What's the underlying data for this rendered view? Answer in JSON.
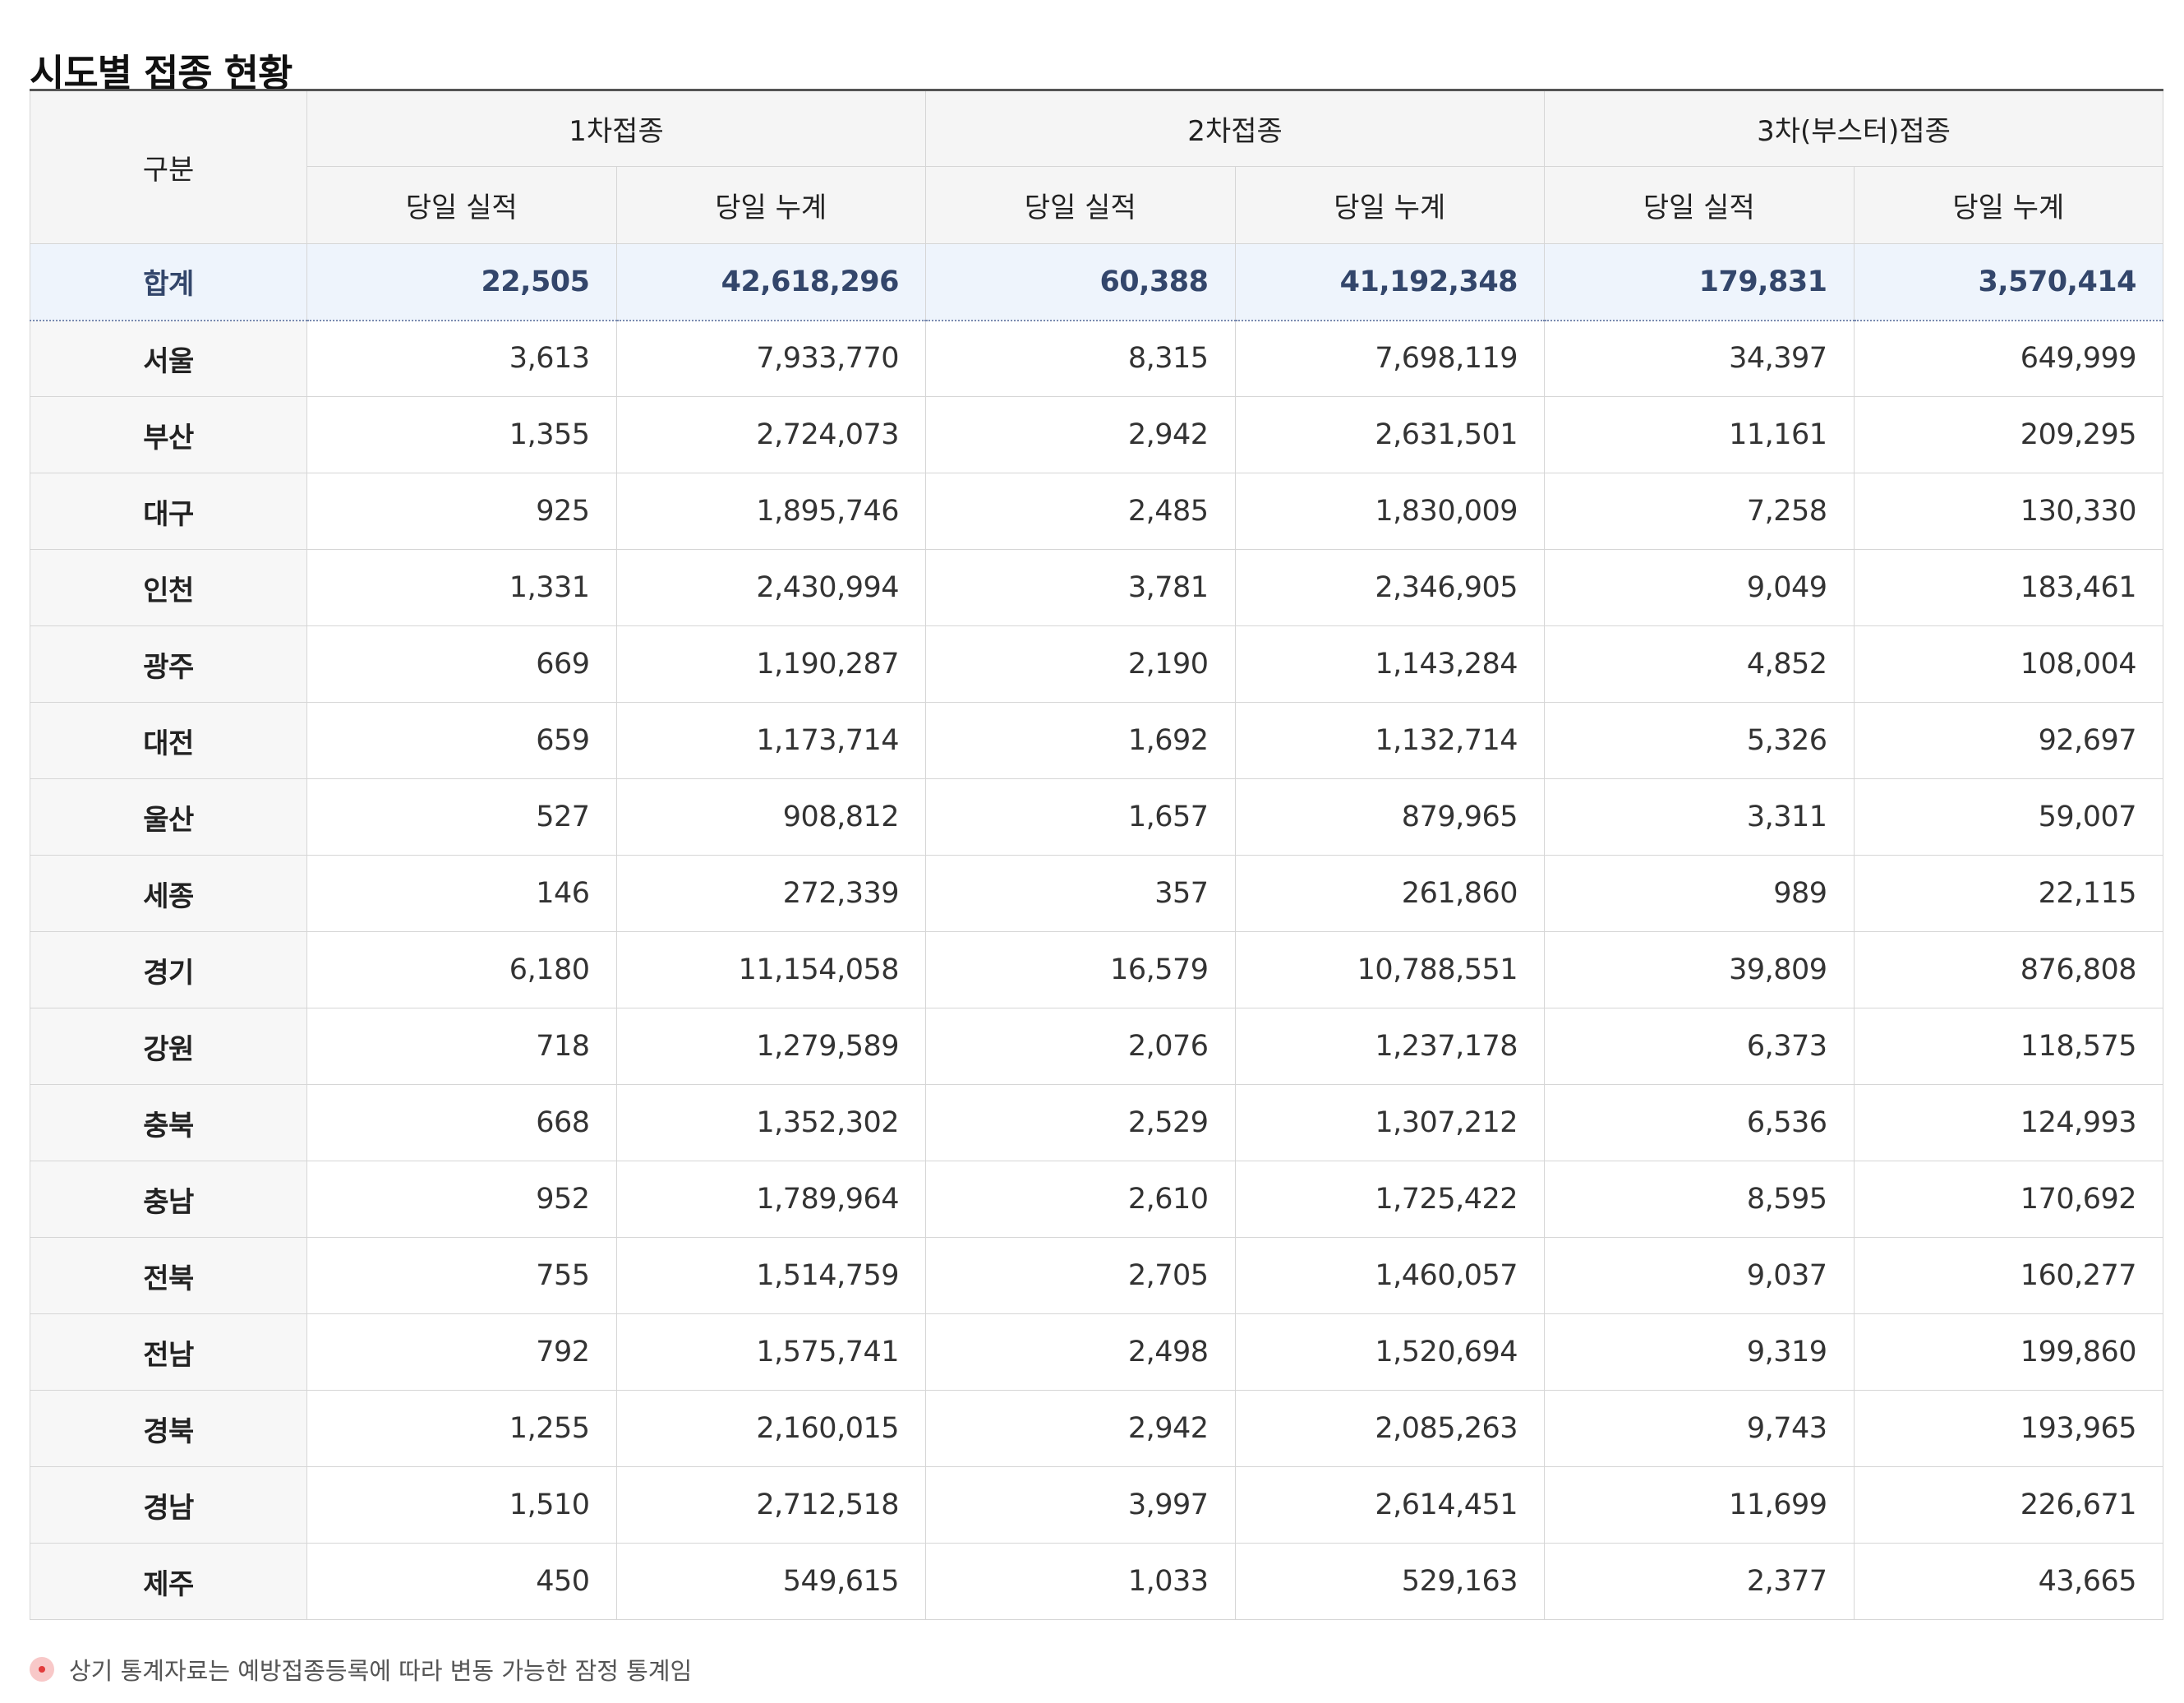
{
  "page": {
    "title": "시도별 접종 현황"
  },
  "table": {
    "region_header": "구분",
    "group_headers": [
      "1차접종",
      "2차접종",
      "3차(부스터)접종"
    ],
    "sub_headers": [
      "당일 실적",
      "당일 누계",
      "당일 실적",
      "당일 누계",
      "당일 실적",
      "당일 누계"
    ],
    "total": {
      "name": "합계",
      "values": [
        "22,505",
        "42,618,296",
        "60,388",
        "41,192,348",
        "179,831",
        "3,570,414"
      ]
    },
    "rows": [
      {
        "name": "서울",
        "values": [
          "3,613",
          "7,933,770",
          "8,315",
          "7,698,119",
          "34,397",
          "649,999"
        ]
      },
      {
        "name": "부산",
        "values": [
          "1,355",
          "2,724,073",
          "2,942",
          "2,631,501",
          "11,161",
          "209,295"
        ]
      },
      {
        "name": "대구",
        "values": [
          "925",
          "1,895,746",
          "2,485",
          "1,830,009",
          "7,258",
          "130,330"
        ]
      },
      {
        "name": "인천",
        "values": [
          "1,331",
          "2,430,994",
          "3,781",
          "2,346,905",
          "9,049",
          "183,461"
        ]
      },
      {
        "name": "광주",
        "values": [
          "669",
          "1,190,287",
          "2,190",
          "1,143,284",
          "4,852",
          "108,004"
        ]
      },
      {
        "name": "대전",
        "values": [
          "659",
          "1,173,714",
          "1,692",
          "1,132,714",
          "5,326",
          "92,697"
        ]
      },
      {
        "name": "울산",
        "values": [
          "527",
          "908,812",
          "1,657",
          "879,965",
          "3,311",
          "59,007"
        ]
      },
      {
        "name": "세종",
        "values": [
          "146",
          "272,339",
          "357",
          "261,860",
          "989",
          "22,115"
        ]
      },
      {
        "name": "경기",
        "values": [
          "6,180",
          "11,154,058",
          "16,579",
          "10,788,551",
          "39,809",
          "876,808"
        ]
      },
      {
        "name": "강원",
        "values": [
          "718",
          "1,279,589",
          "2,076",
          "1,237,178",
          "6,373",
          "118,575"
        ]
      },
      {
        "name": "충북",
        "values": [
          "668",
          "1,352,302",
          "2,529",
          "1,307,212",
          "6,536",
          "124,993"
        ]
      },
      {
        "name": "충남",
        "values": [
          "952",
          "1,789,964",
          "2,610",
          "1,725,422",
          "8,595",
          "170,692"
        ]
      },
      {
        "name": "전북",
        "values": [
          "755",
          "1,514,759",
          "2,705",
          "1,460,057",
          "9,037",
          "160,277"
        ]
      },
      {
        "name": "전남",
        "values": [
          "792",
          "1,575,741",
          "2,498",
          "1,520,694",
          "9,319",
          "199,860"
        ]
      },
      {
        "name": "경북",
        "values": [
          "1,255",
          "2,160,015",
          "2,942",
          "2,085,263",
          "9,743",
          "193,965"
        ]
      },
      {
        "name": "경남",
        "values": [
          "1,510",
          "2,712,518",
          "3,997",
          "2,614,451",
          "11,699",
          "226,671"
        ]
      },
      {
        "name": "제주",
        "values": [
          "450",
          "549,615",
          "1,033",
          "529,163",
          "2,377",
          "43,665"
        ]
      }
    ]
  },
  "note": {
    "text": "상기 통계자료는 예방접종등록에 따라 변동 가능한 잠정 통계임"
  },
  "icons": {
    "note_bullet": "bullet-dot-icon"
  },
  "colors": {
    "total_row_bg": "#eef4fc",
    "total_row_text": "#33466b",
    "header_bg": "#f5f5f5",
    "note_bullet": "#e23b3b"
  }
}
